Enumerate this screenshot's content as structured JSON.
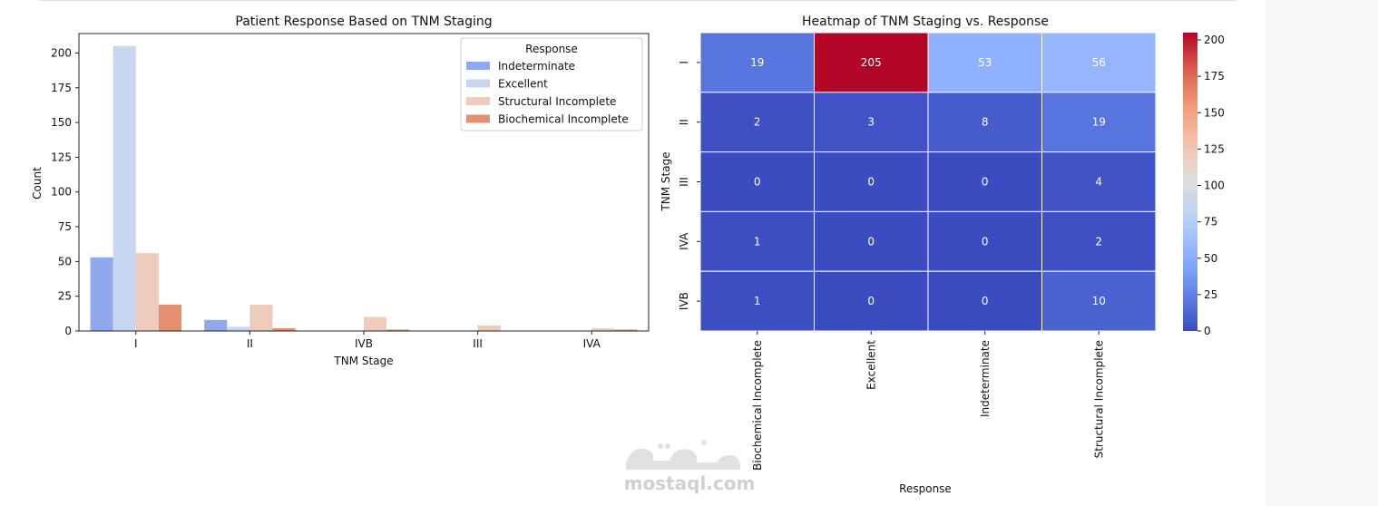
{
  "chart_data": [
    {
      "type": "bar",
      "title": "Patient Response Based on TNM Staging",
      "xlabel": "TNM Stage",
      "ylabel": "Count",
      "categories": [
        "I",
        "II",
        "IVB",
        "III",
        "IVA"
      ],
      "ylim": [
        0,
        214
      ],
      "yticks": [
        0,
        25,
        50,
        75,
        100,
        125,
        150,
        175,
        200
      ],
      "legend": {
        "title": "Response",
        "placement": "top-right"
      },
      "series": [
        {
          "name": "Indeterminate",
          "color": "#8fa9ec",
          "values": [
            53,
            8,
            0,
            0,
            0
          ]
        },
        {
          "name": "Excellent",
          "color": "#c8d7f0",
          "values": [
            205,
            3,
            0,
            0,
            0
          ]
        },
        {
          "name": "Structural Incomplete",
          "color": "#eecbbb",
          "values": [
            56,
            19,
            10,
            4,
            2
          ]
        },
        {
          "name": "Biochemical Incomplete",
          "color": "#e48f72",
          "values": [
            19,
            2,
            1,
            0,
            1
          ]
        }
      ],
      "grid": false
    },
    {
      "type": "heatmap",
      "title": "Heatmap of TNM Staging vs. Response",
      "xlabel": "Response",
      "ylabel": "TNM Stage",
      "x": [
        "Biochemical Incomplete",
        "Excellent",
        "Indeterminate",
        "Structural Incomplete"
      ],
      "y": [
        "I",
        "II",
        "III",
        "IVA",
        "IVB"
      ],
      "values": [
        [
          19,
          205,
          53,
          56
        ],
        [
          2,
          3,
          8,
          19
        ],
        [
          0,
          0,
          0,
          4
        ],
        [
          1,
          0,
          0,
          2
        ],
        [
          1,
          0,
          0,
          10
        ]
      ],
      "colormap": "coolwarm",
      "vmin": 0,
      "vmax": 205,
      "colorbar_ticks": [
        0,
        25,
        50,
        75,
        100,
        125,
        150,
        175,
        200
      ]
    }
  ],
  "watermark": {
    "text": "mostaql.com"
  }
}
